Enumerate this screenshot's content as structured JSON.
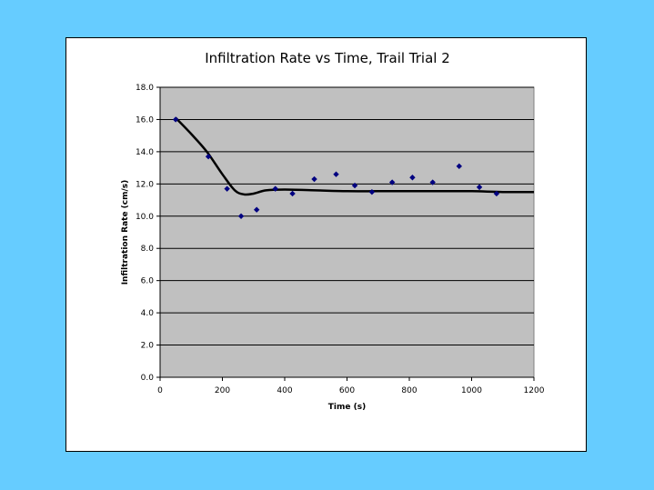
{
  "chart_data": {
    "type": "scatter",
    "title": "Infiltration Rate vs Time, Trail Trial 2",
    "xlabel": "Time (s)",
    "ylabel": "Infiltration Rate (cm/s)",
    "xlim": [
      0,
      1200
    ],
    "ylim": [
      0,
      18
    ],
    "xticks": [
      0,
      200,
      400,
      600,
      800,
      1000,
      1200
    ],
    "yticks": [
      0,
      2,
      4,
      6,
      8,
      10,
      12,
      14,
      16,
      18
    ],
    "ytick_labels": [
      "0.0",
      "2.0",
      "4.0",
      "6.0",
      "8.0",
      "10.0",
      "12.0",
      "14.0",
      "16.0",
      "18.0"
    ],
    "grid": "horizontal",
    "legend": "none",
    "plot_background": "#C0C0C0",
    "marker_color": "#000080",
    "series": [
      {
        "type": "scatter",
        "x": [
          50,
          155,
          215,
          260,
          310,
          370,
          425,
          495,
          565,
          625,
          680,
          745,
          810,
          875,
          960,
          1025,
          1080
        ],
        "y": [
          16.0,
          13.7,
          11.7,
          10.0,
          10.4,
          11.7,
          11.4,
          12.3,
          12.6,
          11.9,
          11.5,
          12.1,
          12.4,
          12.1,
          13.1,
          11.8,
          11.4
        ]
      },
      {
        "type": "line",
        "x": [
          50,
          100,
          150,
          200,
          240,
          270,
          300,
          340,
          400,
          500,
          600,
          700,
          800,
          900,
          1000,
          1100,
          1200
        ],
        "y": [
          16.1,
          15.1,
          14.0,
          12.6,
          11.6,
          11.35,
          11.4,
          11.6,
          11.65,
          11.6,
          11.55,
          11.55,
          11.55,
          11.55,
          11.55,
          11.5,
          11.5
        ]
      }
    ]
  }
}
